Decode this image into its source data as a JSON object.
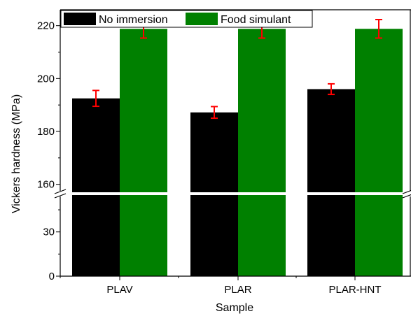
{
  "chart_data": {
    "type": "bar",
    "xlabel": "Sample",
    "ylabel": "Vickers hardness (MPa)",
    "categories": [
      "PLAV",
      "PLAR",
      "PLAR-HNT"
    ],
    "series": [
      {
        "name": "No immersion",
        "color": "#000000",
        "values": [
          192.5,
          187.2,
          196.0
        ],
        "errors": [
          3.0,
          2.2,
          2.0
        ]
      },
      {
        "name": "Food simulant",
        "color": "#008000",
        "values": [
          218.8,
          218.8,
          218.8
        ],
        "errors": [
          3.5,
          3.5,
          3.5
        ]
      }
    ],
    "error_bar_color": "#ff0000",
    "y_axis_break": {
      "lower_segment": {
        "range": [
          0,
          55
        ],
        "ticks": [
          0,
          30
        ]
      },
      "upper_segment": {
        "range": [
          157,
          226
        ],
        "ticks": [
          160,
          180,
          200,
          220
        ]
      }
    },
    "legend_position": "top-left",
    "grid": false
  }
}
